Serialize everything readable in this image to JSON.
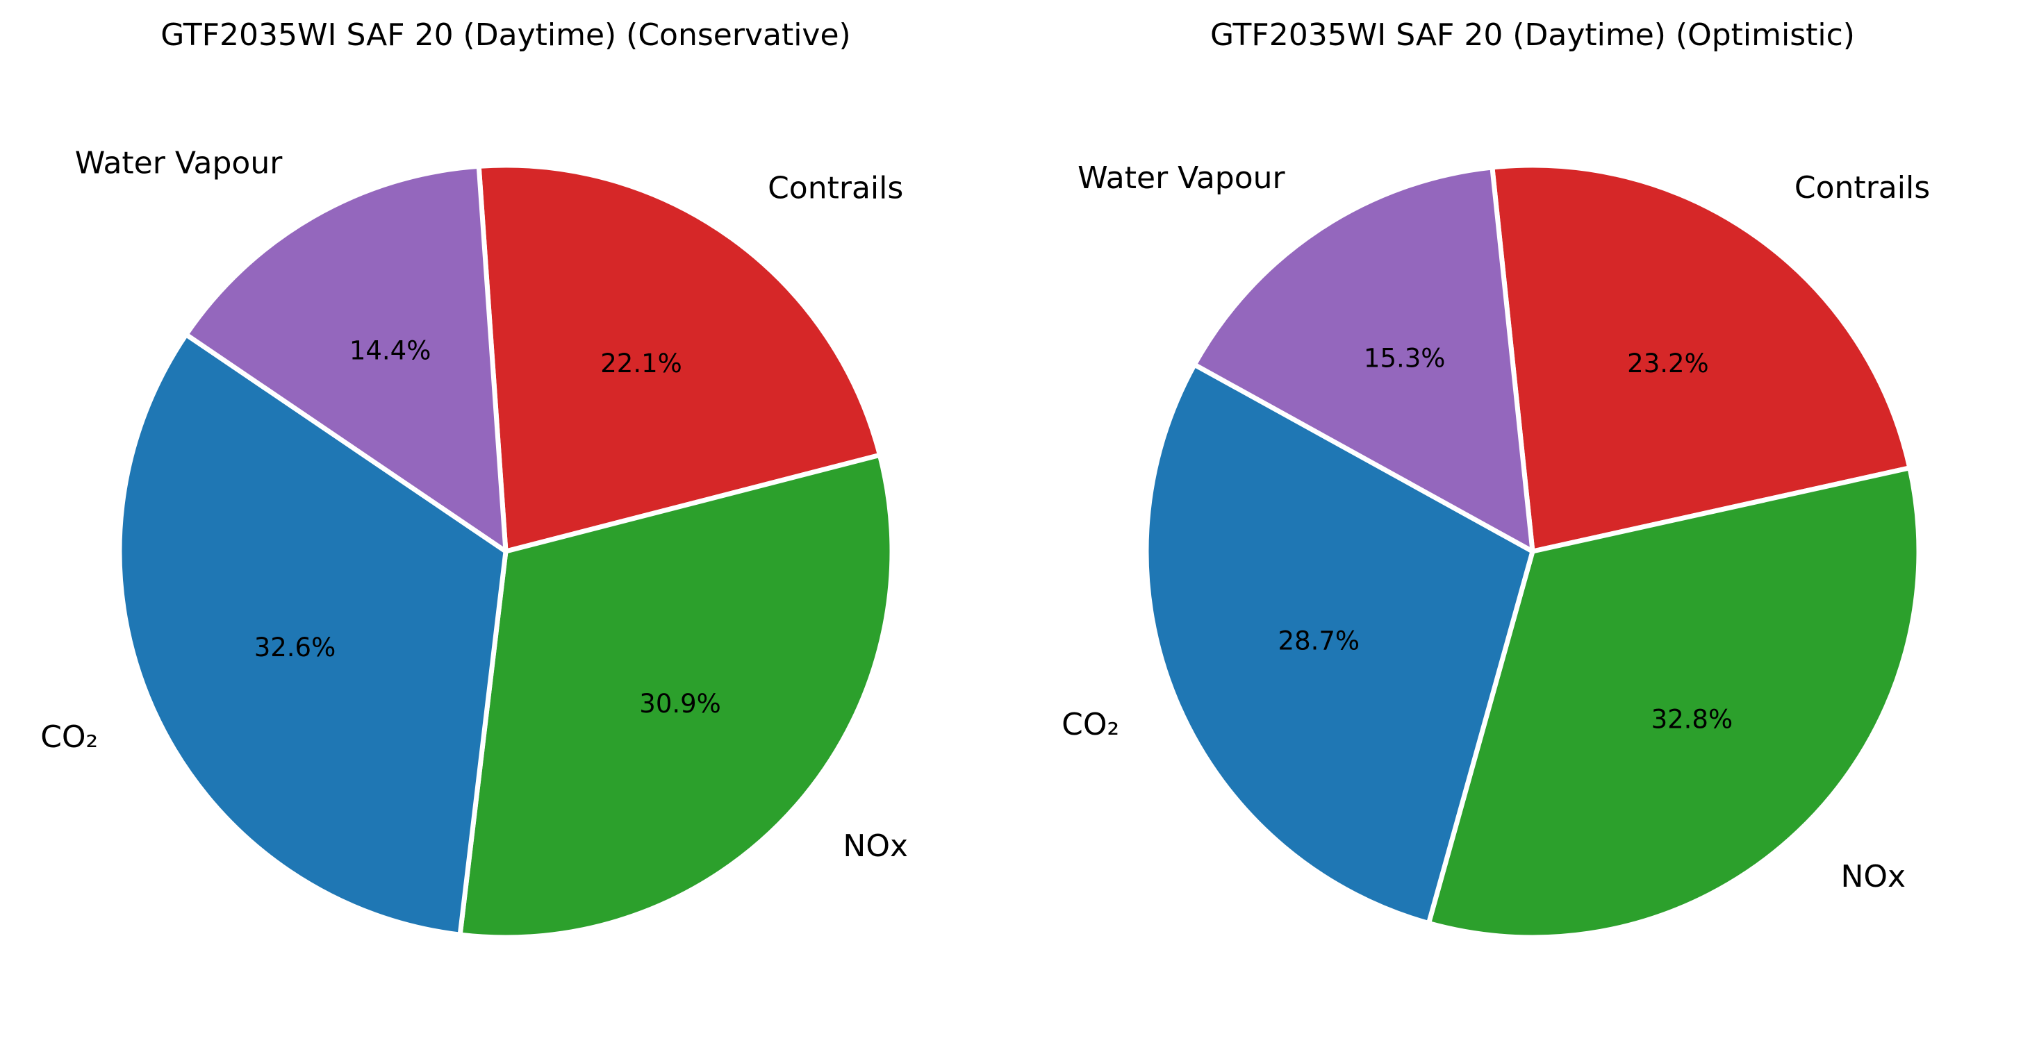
{
  "chart_data": [
    {
      "type": "pie",
      "title": "GTF2035WI SAF 20 (Daytime) (Conservative)",
      "slices": [
        {
          "label": "Contrails",
          "value": 22.1,
          "pct_label": "22.1%",
          "color": "#d62728"
        },
        {
          "label": "NOx",
          "value": 30.9,
          "pct_label": "30.9%",
          "color": "#2ca02c"
        },
        {
          "label": "CO₂",
          "value": 32.6,
          "pct_label": "32.6%",
          "color": "#1f77b4"
        },
        {
          "label": "Water Vapour",
          "value": 14.4,
          "pct_label": "14.4%",
          "color": "#9467bd"
        }
      ]
    },
    {
      "type": "pie",
      "title": "GTF2035WI SAF 20 (Daytime) (Optimistic)",
      "slices": [
        {
          "label": "Contrails",
          "value": 23.2,
          "pct_label": "23.2%",
          "color": "#d62728"
        },
        {
          "label": "NOx",
          "value": 32.8,
          "pct_label": "32.8%",
          "color": "#2ca02c"
        },
        {
          "label": "CO₂",
          "value": 28.7,
          "pct_label": "28.7%",
          "color": "#1f77b4"
        },
        {
          "label": "Water Vapour",
          "value": 15.3,
          "pct_label": "15.3%",
          "color": "#9467bd"
        }
      ]
    }
  ]
}
